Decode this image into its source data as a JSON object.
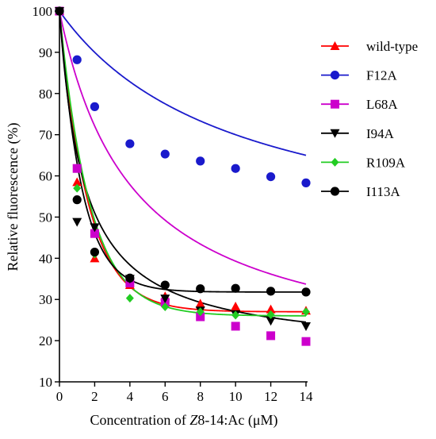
{
  "chart_data": {
    "type": "scatter",
    "xlabel_parts": [
      "Concentration of ",
      "Z",
      "8-14:Ac (μM)"
    ],
    "ylabel": "Relative fluorescence (%)",
    "xlim": [
      0,
      14
    ],
    "ylim": [
      10,
      100
    ],
    "xticks": [
      0,
      2,
      4,
      6,
      8,
      10,
      12,
      14
    ],
    "yticks": [
      10,
      20,
      30,
      40,
      50,
      60,
      70,
      80,
      90,
      100
    ],
    "grid": false,
    "legend_position": "top-right",
    "series": [
      {
        "name": "wild-type",
        "color": "#ff0000",
        "marker": "triangle-up",
        "x": [
          0,
          1,
          2,
          4,
          6,
          8,
          10,
          12,
          14
        ],
        "y": [
          100,
          58.5,
          40,
          33.5,
          30.8,
          29,
          28.3,
          27.6,
          27.3
        ],
        "fit": {
          "plateau": 27.0,
          "span": 73.0,
          "k": 0.62
        }
      },
      {
        "name": "F12A",
        "color": "#1a1acc",
        "marker": "circle",
        "x": [
          0,
          1,
          2,
          4,
          6,
          8,
          10,
          12,
          14
        ],
        "y": [
          100,
          88.2,
          76.8,
          67.8,
          65.3,
          63.6,
          61.8,
          59.8,
          58.3
        ],
        "fit": {
          "plateau": 40.0,
          "span": 60.0,
          "k": 0.1,
          "form": "hyperbolic"
        }
      },
      {
        "name": "L68A",
        "color": "#cc00cc",
        "marker": "square",
        "x": [
          0,
          1,
          2,
          4,
          6,
          8,
          10,
          12,
          14
        ],
        "y": [
          100,
          61.8,
          46,
          34,
          29.3,
          25.8,
          23.5,
          21.2,
          19.8
        ],
        "fit": {
          "plateau": 14.0,
          "span": 86.0,
          "k": 0.24,
          "form": "hyperbolic"
        }
      },
      {
        "name": "I94A",
        "color": "#000000",
        "marker": "triangle-down",
        "x": [
          0,
          1,
          2,
          4,
          6,
          8,
          10,
          12,
          14
        ],
        "y": [
          100,
          48.8,
          47.5,
          35,
          30.2,
          27.3,
          26.4,
          24.8,
          23.5
        ],
        "fit": {
          "plateau": 17.0,
          "span": 83.0,
          "k": 0.72,
          "form": "hyperbolic"
        }
      },
      {
        "name": "R109A",
        "color": "#22cc22",
        "marker": "diamond",
        "x": [
          0,
          1,
          2,
          4,
          6,
          8,
          10,
          12,
          14
        ],
        "y": [
          100,
          57,
          41,
          30.3,
          28.2,
          27,
          26.2,
          26.3,
          27
        ],
        "fit": {
          "plateau": 26.0,
          "span": 74.0,
          "k": 0.58
        }
      },
      {
        "name": "I113A",
        "color": "#000000",
        "marker": "circle",
        "x": [
          0,
          1,
          2,
          4,
          6,
          8,
          10,
          12,
          14
        ],
        "y": [
          100,
          54.2,
          41.5,
          35.2,
          33.5,
          32.6,
          32.7,
          32,
          31.8
        ],
        "fit": {
          "plateau": 31.8,
          "span": 68.2,
          "k": 0.78
        }
      }
    ]
  }
}
